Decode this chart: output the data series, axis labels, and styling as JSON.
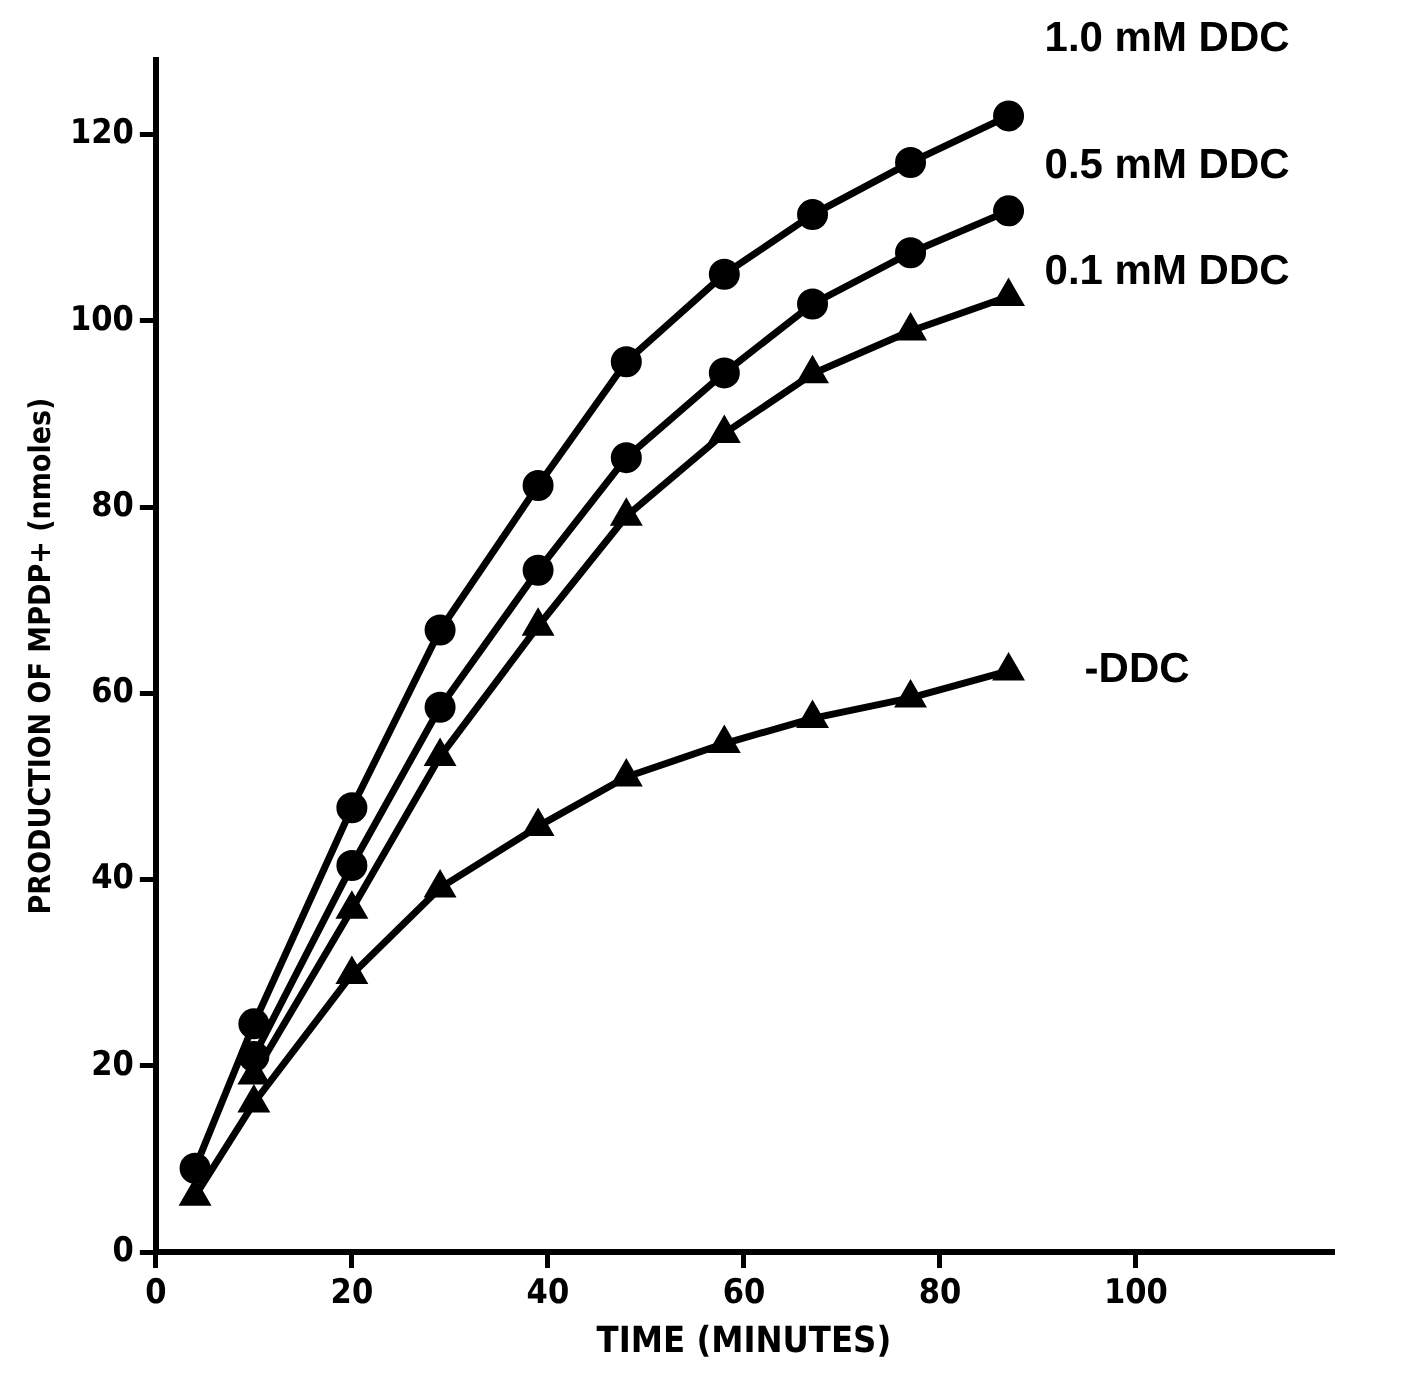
{
  "chart_data": {
    "type": "line",
    "xlabel": "TIME (MINUTES)",
    "ylabel": "PRODUCTION OF MPDP+ (nmoles)",
    "x": [
      4,
      10,
      20,
      29,
      39,
      48,
      58,
      67,
      77,
      87
    ],
    "series": [
      {
        "name": "1.0 mM DDC",
        "color": "#000000",
        "marker": "circle",
        "values": [
          9,
          24.5,
          47.7,
          66.8,
          82.3,
          95.6,
          105,
          111.4,
          117,
          122
        ]
      },
      {
        "name": "0.5 mM DDC",
        "color": "#000000",
        "marker": "circle",
        "values": [
          null,
          21,
          41.5,
          58.5,
          73.2,
          85.3,
          94.4,
          101.8,
          107.3,
          111.8
        ]
      },
      {
        "name": "0.1 mM DDC",
        "color": "#000000",
        "marker": "triangle",
        "values": [
          null,
          19,
          36.8,
          53.2,
          67.2,
          79,
          87.9,
          94.3,
          98.9,
          102.6
        ]
      },
      {
        "name": "-DDC",
        "color": "#000000",
        "marker": "triangle",
        "values": [
          6,
          16,
          29.8,
          39.1,
          45.7,
          51,
          54.6,
          57.3,
          59.5,
          62.4
        ]
      }
    ],
    "xlim": [
      0,
      120
    ],
    "xticks": [
      0,
      20,
      40,
      60,
      80,
      100
    ],
    "ylim": [
      0,
      128
    ],
    "yticks": [
      0,
      20,
      40,
      60,
      80,
      100,
      120
    ],
    "grid": false,
    "legend": false,
    "line_style": "solid"
  }
}
